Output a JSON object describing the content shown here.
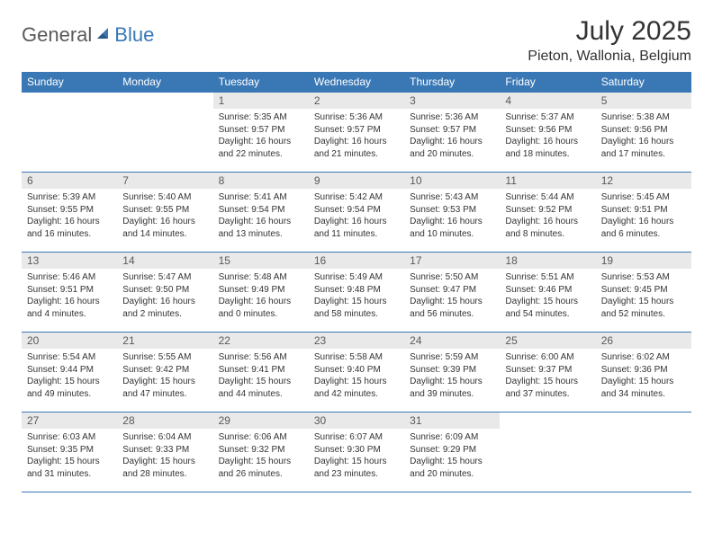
{
  "brand": {
    "word1": "General",
    "word2": "Blue"
  },
  "title": "July 2025",
  "location": "Pieton, Wallonia, Belgium",
  "colors": {
    "header_bg": "#3a78b5",
    "daynum_bg": "#e9e9e9",
    "text_main": "#333333",
    "text_muted": "#5a5a5a",
    "border": "#3a78b5",
    "page_bg": "#ffffff"
  },
  "typography": {
    "title_fontsize": 30,
    "location_fontsize": 16,
    "weekday_fontsize": 12,
    "daynum_fontsize": 12,
    "body_fontsize": 10
  },
  "weekdays": [
    "Sunday",
    "Monday",
    "Tuesday",
    "Wednesday",
    "Thursday",
    "Friday",
    "Saturday"
  ],
  "weeks": [
    [
      null,
      null,
      {
        "n": "1",
        "sr": "Sunrise: 5:35 AM",
        "ss": "Sunset: 9:57 PM",
        "dl": "Daylight: 16 hours and 22 minutes."
      },
      {
        "n": "2",
        "sr": "Sunrise: 5:36 AM",
        "ss": "Sunset: 9:57 PM",
        "dl": "Daylight: 16 hours and 21 minutes."
      },
      {
        "n": "3",
        "sr": "Sunrise: 5:36 AM",
        "ss": "Sunset: 9:57 PM",
        "dl": "Daylight: 16 hours and 20 minutes."
      },
      {
        "n": "4",
        "sr": "Sunrise: 5:37 AM",
        "ss": "Sunset: 9:56 PM",
        "dl": "Daylight: 16 hours and 18 minutes."
      },
      {
        "n": "5",
        "sr": "Sunrise: 5:38 AM",
        "ss": "Sunset: 9:56 PM",
        "dl": "Daylight: 16 hours and 17 minutes."
      }
    ],
    [
      {
        "n": "6",
        "sr": "Sunrise: 5:39 AM",
        "ss": "Sunset: 9:55 PM",
        "dl": "Daylight: 16 hours and 16 minutes."
      },
      {
        "n": "7",
        "sr": "Sunrise: 5:40 AM",
        "ss": "Sunset: 9:55 PM",
        "dl": "Daylight: 16 hours and 14 minutes."
      },
      {
        "n": "8",
        "sr": "Sunrise: 5:41 AM",
        "ss": "Sunset: 9:54 PM",
        "dl": "Daylight: 16 hours and 13 minutes."
      },
      {
        "n": "9",
        "sr": "Sunrise: 5:42 AM",
        "ss": "Sunset: 9:54 PM",
        "dl": "Daylight: 16 hours and 11 minutes."
      },
      {
        "n": "10",
        "sr": "Sunrise: 5:43 AM",
        "ss": "Sunset: 9:53 PM",
        "dl": "Daylight: 16 hours and 10 minutes."
      },
      {
        "n": "11",
        "sr": "Sunrise: 5:44 AM",
        "ss": "Sunset: 9:52 PM",
        "dl": "Daylight: 16 hours and 8 minutes."
      },
      {
        "n": "12",
        "sr": "Sunrise: 5:45 AM",
        "ss": "Sunset: 9:51 PM",
        "dl": "Daylight: 16 hours and 6 minutes."
      }
    ],
    [
      {
        "n": "13",
        "sr": "Sunrise: 5:46 AM",
        "ss": "Sunset: 9:51 PM",
        "dl": "Daylight: 16 hours and 4 minutes."
      },
      {
        "n": "14",
        "sr": "Sunrise: 5:47 AM",
        "ss": "Sunset: 9:50 PM",
        "dl": "Daylight: 16 hours and 2 minutes."
      },
      {
        "n": "15",
        "sr": "Sunrise: 5:48 AM",
        "ss": "Sunset: 9:49 PM",
        "dl": "Daylight: 16 hours and 0 minutes."
      },
      {
        "n": "16",
        "sr": "Sunrise: 5:49 AM",
        "ss": "Sunset: 9:48 PM",
        "dl": "Daylight: 15 hours and 58 minutes."
      },
      {
        "n": "17",
        "sr": "Sunrise: 5:50 AM",
        "ss": "Sunset: 9:47 PM",
        "dl": "Daylight: 15 hours and 56 minutes."
      },
      {
        "n": "18",
        "sr": "Sunrise: 5:51 AM",
        "ss": "Sunset: 9:46 PM",
        "dl": "Daylight: 15 hours and 54 minutes."
      },
      {
        "n": "19",
        "sr": "Sunrise: 5:53 AM",
        "ss": "Sunset: 9:45 PM",
        "dl": "Daylight: 15 hours and 52 minutes."
      }
    ],
    [
      {
        "n": "20",
        "sr": "Sunrise: 5:54 AM",
        "ss": "Sunset: 9:44 PM",
        "dl": "Daylight: 15 hours and 49 minutes."
      },
      {
        "n": "21",
        "sr": "Sunrise: 5:55 AM",
        "ss": "Sunset: 9:42 PM",
        "dl": "Daylight: 15 hours and 47 minutes."
      },
      {
        "n": "22",
        "sr": "Sunrise: 5:56 AM",
        "ss": "Sunset: 9:41 PM",
        "dl": "Daylight: 15 hours and 44 minutes."
      },
      {
        "n": "23",
        "sr": "Sunrise: 5:58 AM",
        "ss": "Sunset: 9:40 PM",
        "dl": "Daylight: 15 hours and 42 minutes."
      },
      {
        "n": "24",
        "sr": "Sunrise: 5:59 AM",
        "ss": "Sunset: 9:39 PM",
        "dl": "Daylight: 15 hours and 39 minutes."
      },
      {
        "n": "25",
        "sr": "Sunrise: 6:00 AM",
        "ss": "Sunset: 9:37 PM",
        "dl": "Daylight: 15 hours and 37 minutes."
      },
      {
        "n": "26",
        "sr": "Sunrise: 6:02 AM",
        "ss": "Sunset: 9:36 PM",
        "dl": "Daylight: 15 hours and 34 minutes."
      }
    ],
    [
      {
        "n": "27",
        "sr": "Sunrise: 6:03 AM",
        "ss": "Sunset: 9:35 PM",
        "dl": "Daylight: 15 hours and 31 minutes."
      },
      {
        "n": "28",
        "sr": "Sunrise: 6:04 AM",
        "ss": "Sunset: 9:33 PM",
        "dl": "Daylight: 15 hours and 28 minutes."
      },
      {
        "n": "29",
        "sr": "Sunrise: 6:06 AM",
        "ss": "Sunset: 9:32 PM",
        "dl": "Daylight: 15 hours and 26 minutes."
      },
      {
        "n": "30",
        "sr": "Sunrise: 6:07 AM",
        "ss": "Sunset: 9:30 PM",
        "dl": "Daylight: 15 hours and 23 minutes."
      },
      {
        "n": "31",
        "sr": "Sunrise: 6:09 AM",
        "ss": "Sunset: 9:29 PM",
        "dl": "Daylight: 15 hours and 20 minutes."
      },
      null,
      null
    ]
  ]
}
